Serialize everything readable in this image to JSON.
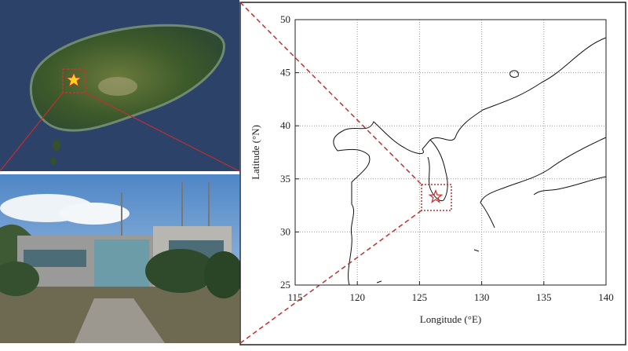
{
  "chart_data": {
    "type": "scatter",
    "x": [
      126.3
    ],
    "values": [
      33.3
    ],
    "color": "#d03030",
    "xlim": [
      115,
      140
    ],
    "ylim": [
      25,
      50
    ],
    "xticks": [
      115,
      120,
      125,
      130,
      135,
      140
    ],
    "yticks": [
      25,
      30,
      35,
      40,
      45,
      50
    ],
    "xlabel": "Longitude (°E)",
    "ylabel": "Latitude (°N)",
    "grid": true
  }
}
